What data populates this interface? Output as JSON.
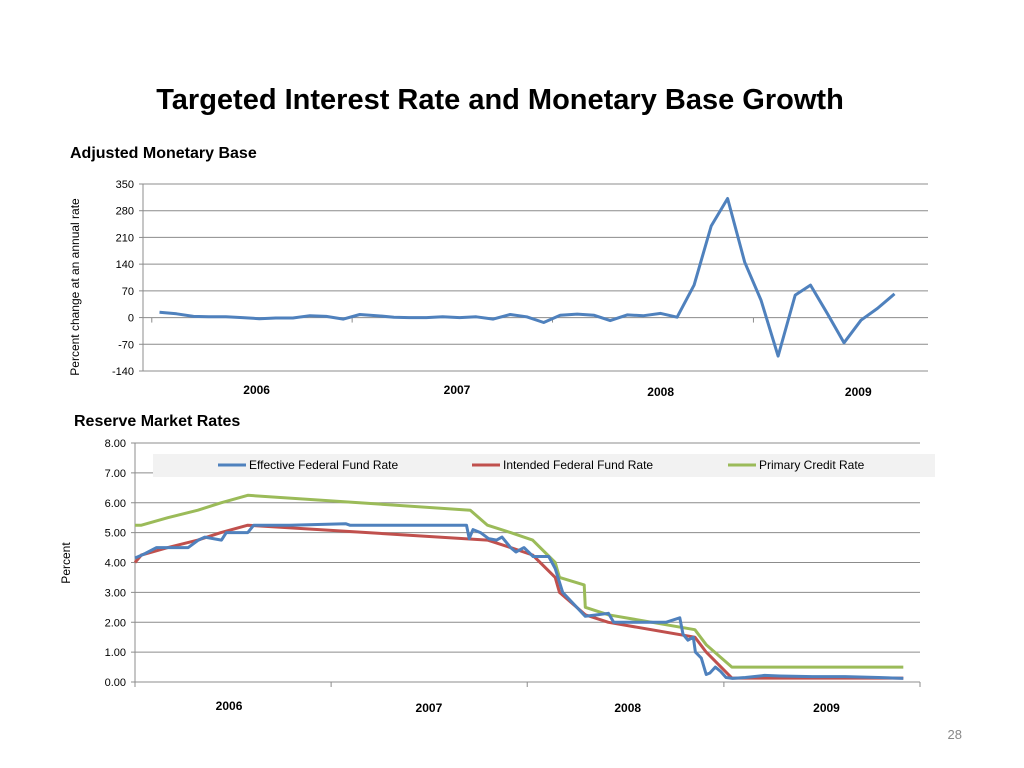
{
  "slide": {
    "title": "Targeted Interest Rate and Monetary Base Growth",
    "page_number": "28"
  },
  "chart_data": [
    {
      "type": "line",
      "title": "Adjusted Monetary Base",
      "ylabel": "Percent change at an annual rate",
      "xlabel": "",
      "ylim": [
        -140,
        350
      ],
      "yticks": [
        "350",
        "280",
        "210",
        "140",
        "70",
        "0",
        "-70",
        "-140"
      ],
      "xticks": [
        "2006",
        "2007",
        "2008",
        "2009"
      ],
      "x_range": [
        "2005-11",
        "2009-10"
      ],
      "grid": true,
      "series": [
        {
          "color": "#4f81bd",
          "x": [
            "2005-12",
            "2006-01",
            "2006-02",
            "2006-03",
            "2006-04",
            "2006-05",
            "2006-06",
            "2006-07",
            "2006-08",
            "2006-09",
            "2006-10",
            "2006-11",
            "2006-12",
            "2007-01",
            "2007-02",
            "2007-03",
            "2007-04",
            "2007-05",
            "2007-06",
            "2007-07",
            "2007-08",
            "2007-09",
            "2007-10",
            "2007-11",
            "2007-12",
            "2008-01",
            "2008-02",
            "2008-03",
            "2008-04",
            "2008-05",
            "2008-06",
            "2008-07",
            "2008-08",
            "2008-09",
            "2008-10",
            "2008-11",
            "2008-12",
            "2009-01",
            "2009-02",
            "2009-03",
            "2009-04",
            "2009-05",
            "2009-06",
            "2009-07",
            "2009-08"
          ],
          "values": [
            14,
            10,
            3,
            2,
            2,
            0,
            -3,
            -1,
            -1,
            5,
            3,
            -4,
            8,
            5,
            1,
            0,
            0,
            2,
            0,
            2,
            -4,
            8,
            2,
            -13,
            6,
            9,
            6,
            -8,
            7,
            5,
            11,
            1,
            85,
            240,
            312,
            145,
            45,
            -101,
            59,
            85,
            10,
            -66,
            -7,
            24,
            62
          ]
        }
      ]
    },
    {
      "type": "line",
      "title": "Reserve Market Rates",
      "ylabel": "Percent",
      "xlabel": "",
      "ylim": [
        0,
        8
      ],
      "yticks": [
        "8.00",
        "7.00",
        "6.00",
        "5.00",
        "4.00",
        "3.00",
        "2.00",
        "1.00",
        "0.00"
      ],
      "xticks": [
        "2006",
        "2007",
        "2008",
        "2009"
      ],
      "x_range": [
        "2005-12-01",
        "2009-12-01"
      ],
      "grid": true,
      "legend_position": "top",
      "series": [
        {
          "name": "Effective Federal Fund Rate",
          "color": "#4f81bd",
          "x": [
            "2005-12-01",
            "2005-12-14",
            "2005-12-20",
            "2006-01-10",
            "2006-02-01",
            "2006-03-10",
            "2006-03-29",
            "2006-04-10",
            "2006-05-11",
            "2006-05-20",
            "2006-06-29",
            "2006-07-10",
            "2006-09-15",
            "2006-12-28",
            "2007-01-05",
            "2007-03-15",
            "2007-06-15",
            "2007-08-10",
            "2007-08-15",
            "2007-08-22",
            "2007-09-05",
            "2007-09-20",
            "2007-10-05",
            "2007-10-15",
            "2007-10-31",
            "2007-11-10",
            "2007-11-25",
            "2007-12-12",
            "2008-01-10",
            "2008-01-22",
            "2008-02-05",
            "2008-03-18",
            "2008-04-10",
            "2008-04-30",
            "2008-05-10",
            "2008-06-15",
            "2008-07-15",
            "2008-08-15",
            "2008-09-10",
            "2008-09-16",
            "2008-09-25",
            "2008-10-05",
            "2008-10-09",
            "2008-10-20",
            "2008-10-29",
            "2008-11-05",
            "2008-11-15",
            "2008-11-25",
            "2008-12-05",
            "2008-12-17",
            "2009-01-10",
            "2009-02-15",
            "2009-03-15",
            "2009-05-15",
            "2009-07-15",
            "2009-09-15",
            "2009-10-31"
          ],
          "values": [
            4.15,
            4.25,
            4.3,
            4.5,
            4.5,
            4.5,
            4.75,
            4.85,
            4.75,
            5.0,
            5.0,
            5.25,
            5.25,
            5.3,
            5.25,
            5.25,
            5.25,
            5.25,
            4.8,
            5.1,
            5.0,
            4.8,
            4.75,
            4.85,
            4.5,
            4.35,
            4.5,
            4.2,
            4.2,
            3.8,
            3.0,
            2.2,
            2.25,
            2.3,
            2.0,
            2.0,
            2.0,
            2.0,
            2.15,
            1.6,
            1.4,
            1.5,
            1.0,
            0.8,
            0.25,
            0.3,
            0.5,
            0.35,
            0.15,
            0.12,
            0.15,
            0.22,
            0.2,
            0.18,
            0.18,
            0.15,
            0.12
          ]
        },
        {
          "name": "Intended Federal Fund Rate",
          "color": "#c0504d",
          "x": [
            "2005-12-01",
            "2005-12-13",
            "2006-01-31",
            "2006-03-28",
            "2006-05-10",
            "2006-06-29",
            "2007-09-18",
            "2007-10-31",
            "2007-12-11",
            "2008-01-22",
            "2008-01-30",
            "2008-03-18",
            "2008-04-30",
            "2008-10-08",
            "2008-10-29",
            "2008-12-16",
            "2009-10-31"
          ],
          "values": [
            4.0,
            4.25,
            4.5,
            4.75,
            5.0,
            5.25,
            4.75,
            4.5,
            4.25,
            3.5,
            3.0,
            2.25,
            2.0,
            1.5,
            1.0,
            0.13,
            0.13
          ]
        },
        {
          "name": "Primary Credit Rate",
          "color": "#9bbb59",
          "x": [
            "2005-12-01",
            "2005-12-13",
            "2006-01-31",
            "2006-03-28",
            "2006-05-10",
            "2006-06-29",
            "2007-08-17",
            "2007-09-18",
            "2007-10-31",
            "2007-12-11",
            "2008-01-22",
            "2008-01-30",
            "2008-03-16",
            "2008-03-18",
            "2008-04-30",
            "2008-10-08",
            "2008-10-29",
            "2008-12-16",
            "2009-10-31"
          ],
          "values": [
            5.25,
            5.25,
            5.5,
            5.75,
            6.0,
            6.25,
            5.75,
            5.25,
            5.0,
            4.75,
            4.0,
            3.5,
            3.25,
            2.5,
            2.25,
            1.75,
            1.25,
            0.5,
            0.5
          ]
        }
      ]
    }
  ]
}
